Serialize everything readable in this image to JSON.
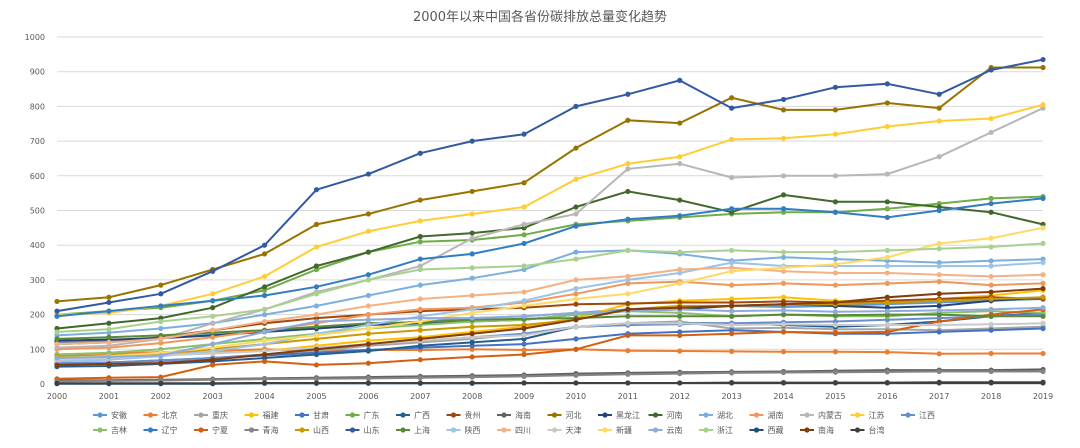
{
  "chart_data": {
    "type": "line",
    "title": "2000年以来中国各省份碳排放总量变化趋势",
    "xlabel": "",
    "ylabel": "",
    "ylim": [
      0,
      1000
    ],
    "yticks": [
      0,
      100,
      200,
      300,
      400,
      500,
      600,
      700,
      800,
      900,
      1000
    ],
    "grid": true,
    "legend_position": "bottom",
    "categories": [
      "2000",
      "2001",
      "2002",
      "2003",
      "2004",
      "2005",
      "2006",
      "2007",
      "2008",
      "2009",
      "2010",
      "2011",
      "2012",
      "2013",
      "2014",
      "2015",
      "2016",
      "2017",
      "2018",
      "2019"
    ],
    "series": [
      {
        "name": "安徽",
        "color": "#5b9bd5",
        "values": [
          120,
          125,
          135,
          142,
          150,
          160,
          170,
          180,
          190,
          195,
          205,
          215,
          220,
          225,
          222,
          225,
          230,
          235,
          240,
          245
        ]
      },
      {
        "name": "北京",
        "color": "#ed7d31",
        "values": [
          85,
          88,
          92,
          95,
          100,
          95,
          98,
          98,
          100,
          98,
          100,
          96,
          95,
          94,
          93,
          93,
          92,
          87,
          88,
          88
        ]
      },
      {
        "name": "重庆",
        "color": "#a5a5a5",
        "values": [
          55,
          60,
          65,
          75,
          85,
          95,
          110,
          120,
          130,
          145,
          165,
          175,
          180,
          160,
          162,
          158,
          158,
          155,
          160,
          165
        ]
      },
      {
        "name": "福建",
        "color": "#ffc000",
        "values": [
          75,
          78,
          85,
          90,
          95,
          110,
          125,
          135,
          150,
          165,
          190,
          230,
          240,
          245,
          250,
          240,
          235,
          245,
          255,
          270
        ]
      },
      {
        "name": "甘肃",
        "color": "#4472c4",
        "values": [
          60,
          62,
          68,
          75,
          82,
          90,
          98,
          105,
          110,
          115,
          130,
          145,
          150,
          155,
          150,
          145,
          145,
          150,
          155,
          160
        ]
      },
      {
        "name": "广东",
        "color": "#70ad47",
        "values": [
          200,
          210,
          220,
          240,
          270,
          330,
          380,
          410,
          415,
          430,
          460,
          470,
          480,
          490,
          495,
          495,
          505,
          520,
          535,
          540
        ]
      },
      {
        "name": "广西",
        "color": "#255e91",
        "values": [
          50,
          52,
          58,
          65,
          75,
          85,
          95,
          110,
          120,
          130,
          165,
          170,
          175,
          175,
          170,
          165,
          170,
          180,
          195,
          205
        ]
      },
      {
        "name": "贵州",
        "color": "#9e480e",
        "values": [
          115,
          120,
          135,
          155,
          175,
          190,
          200,
          210,
          215,
          220,
          230,
          232,
          235,
          235,
          238,
          235,
          240,
          245,
          250,
          245
        ]
      },
      {
        "name": "海南",
        "color": "#636363",
        "values": [
          10,
          11,
          12,
          14,
          16,
          18,
          20,
          22,
          24,
          26,
          30,
          32,
          34,
          35,
          36,
          38,
          40,
          40,
          40,
          42
        ]
      },
      {
        "name": "河北",
        "color": "#997300",
        "values": [
          238,
          250,
          285,
          330,
          375,
          460,
          490,
          530,
          555,
          580,
          680,
          760,
          752,
          825,
          790,
          790,
          810,
          795,
          912,
          912
        ]
      },
      {
        "name": "黑龙江",
        "color": "#264478",
        "values": [
          125,
          128,
          132,
          140,
          150,
          160,
          170,
          175,
          180,
          185,
          200,
          210,
          215,
          225,
          230,
          225,
          220,
          225,
          240,
          250
        ]
      },
      {
        "name": "河南",
        "color": "#43682b",
        "values": [
          160,
          175,
          190,
          220,
          280,
          340,
          380,
          425,
          435,
          450,
          510,
          555,
          530,
          495,
          545,
          525,
          525,
          510,
          495,
          460
        ]
      },
      {
        "name": "湖北",
        "color": "#7cafdd",
        "values": [
          140,
          148,
          160,
          175,
          200,
          225,
          255,
          285,
          305,
          330,
          380,
          385,
          375,
          355,
          365,
          360,
          355,
          350,
          355,
          360
        ]
      },
      {
        "name": "湖南",
        "color": "#f1975a",
        "values": [
          100,
          105,
          118,
          135,
          155,
          175,
          200,
          215,
          220,
          235,
          260,
          290,
          295,
          285,
          290,
          285,
          290,
          295,
          285,
          290
        ]
      },
      {
        "name": "内蒙古",
        "color": "#b7b7b7",
        "values": [
          105,
          110,
          130,
          175,
          215,
          265,
          300,
          340,
          420,
          460,
          490,
          620,
          635,
          595,
          600,
          600,
          605,
          655,
          725,
          795
        ]
      },
      {
        "name": "江苏",
        "color": "#ffcd33",
        "values": [
          200,
          205,
          225,
          260,
          310,
          395,
          440,
          470,
          490,
          510,
          590,
          635,
          655,
          705,
          708,
          720,
          742,
          758,
          765,
          805
        ]
      },
      {
        "name": "江西",
        "color": "#698ed0",
        "values": [
          60,
          62,
          68,
          75,
          85,
          100,
          115,
          125,
          135,
          145,
          165,
          170,
          172,
          175,
          178,
          180,
          185,
          190,
          195,
          200
        ]
      },
      {
        "name": "吉林",
        "color": "#8cc168",
        "values": [
          85,
          90,
          100,
          115,
          130,
          145,
          160,
          170,
          180,
          185,
          200,
          210,
          205,
          195,
          200,
          195,
          195,
          205,
          210,
          205
        ]
      },
      {
        "name": "辽宁",
        "color": "#327dc2",
        "values": [
          195,
          210,
          225,
          240,
          255,
          280,
          315,
          360,
          375,
          405,
          455,
          475,
          485,
          505,
          505,
          495,
          480,
          500,
          520,
          535
        ]
      },
      {
        "name": "宁夏",
        "color": "#d26012",
        "values": [
          15,
          18,
          20,
          55,
          65,
          55,
          60,
          70,
          78,
          85,
          100,
          140,
          140,
          145,
          150,
          148,
          150,
          180,
          200,
          215
        ]
      },
      {
        "name": "青海",
        "color": "#848484",
        "values": [
          8,
          9,
          10,
          12,
          14,
          15,
          16,
          18,
          20,
          22,
          25,
          28,
          30,
          32,
          33,
          34,
          35,
          36,
          36,
          36
        ]
      },
      {
        "name": "山西",
        "color": "#cc9a00",
        "values": [
          80,
          82,
          88,
          100,
          115,
          130,
          145,
          155,
          165,
          170,
          185,
          215,
          225,
          225,
          228,
          230,
          235,
          240,
          245,
          250
        ]
      },
      {
        "name": "山东",
        "color": "#335aa1",
        "values": [
          210,
          235,
          260,
          325,
          400,
          560,
          605,
          665,
          700,
          720,
          800,
          835,
          875,
          795,
          820,
          855,
          865,
          835,
          905,
          935
        ]
      },
      {
        "name": "上海",
        "color": "#5a8a39",
        "values": [
          130,
          135,
          140,
          148,
          155,
          165,
          175,
          178,
          185,
          188,
          190,
          195,
          195,
          195,
          200,
          198,
          200,
          200,
          195,
          195
        ]
      },
      {
        "name": "陕西",
        "color": "#9dc3e6",
        "values": [
          65,
          70,
          80,
          95,
          115,
          145,
          170,
          195,
          215,
          240,
          275,
          300,
          320,
          350,
          340,
          340,
          340,
          340,
          340,
          350
        ]
      },
      {
        "name": "四川",
        "color": "#f4b183",
        "values": [
          115,
          120,
          130,
          155,
          180,
          200,
          225,
          245,
          255,
          265,
          300,
          310,
          330,
          335,
          325,
          320,
          320,
          315,
          310,
          315
        ]
      },
      {
        "name": "天津",
        "color": "#c9c9c9",
        "values": [
          70,
          75,
          82,
          88,
          95,
          105,
          115,
          125,
          135,
          140,
          165,
          175,
          175,
          170,
          172,
          170,
          170,
          170,
          172,
          175
        ]
      },
      {
        "name": "新疆",
        "color": "#ffd966",
        "values": [
          75,
          80,
          90,
          105,
          125,
          140,
          160,
          180,
          205,
          225,
          245,
          260,
          290,
          325,
          335,
          345,
          365,
          405,
          420,
          450
        ]
      },
      {
        "name": "云南",
        "color": "#8faadc",
        "values": [
          75,
          78,
          82,
          115,
          150,
          180,
          185,
          190,
          190,
          195,
          205,
          210,
          215,
          210,
          212,
          208,
          210,
          212,
          215,
          220
        ]
      },
      {
        "name": "浙江",
        "color": "#a9d18e",
        "values": [
          150,
          158,
          180,
          195,
          215,
          260,
          300,
          330,
          335,
          340,
          360,
          385,
          380,
          385,
          380,
          380,
          385,
          390,
          395,
          405
        ]
      },
      {
        "name": "西藏",
        "color": "#1f4e79",
        "values": [
          1,
          1,
          1,
          1,
          2,
          2,
          2,
          2,
          2,
          3,
          3,
          3,
          3,
          4,
          4,
          4,
          4,
          5,
          5,
          5
        ]
      },
      {
        "name": "南海",
        "color": "#843c0c",
        "values": [
          55,
          58,
          60,
          70,
          85,
          100,
          115,
          130,
          145,
          160,
          185,
          215,
          220,
          225,
          230,
          235,
          250,
          260,
          265,
          275
        ]
      },
      {
        "name": "台湾",
        "color": "#404040",
        "values": [
          2,
          2,
          2,
          2,
          3,
          3,
          3,
          3,
          3,
          3,
          3,
          3,
          3,
          3,
          3,
          3,
          3,
          3,
          3,
          3
        ]
      }
    ]
  }
}
